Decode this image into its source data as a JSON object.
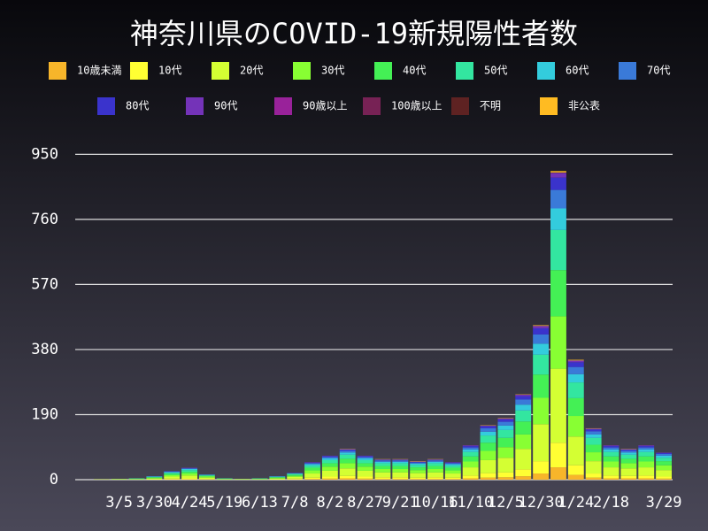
{
  "chart_data": {
    "type": "stacked-bar",
    "title": "神奈川県のCOVID-19新規陽性者数",
    "categories": [
      null,
      null,
      "3/5",
      null,
      "3/30",
      null,
      "4/24",
      null,
      "5/19",
      null,
      "6/13",
      null,
      "7/8",
      null,
      "8/2",
      null,
      "8/27",
      null,
      "9/21",
      null,
      "10/16",
      null,
      "11/10",
      null,
      "12/5",
      null,
      "12/30",
      null,
      "1/24",
      null,
      "2/18",
      null,
      null,
      "3/29"
    ],
    "series": [
      {
        "name": "10歳未満",
        "color": "#f7b52a",
        "values": [
          0,
          0,
          0,
          0,
          0,
          1,
          1,
          1,
          0,
          0,
          0,
          0,
          1,
          2,
          3,
          4,
          3,
          2,
          2,
          2,
          2,
          2,
          4,
          6,
          7,
          10,
          18,
          36,
          14,
          6,
          4,
          4,
          4,
          3
        ]
      },
      {
        "name": "10代",
        "color": "#ffff33",
        "values": [
          0,
          0,
          0,
          0,
          1,
          2,
          3,
          1,
          0,
          0,
          0,
          1,
          2,
          4,
          6,
          7,
          6,
          5,
          5,
          4,
          5,
          4,
          8,
          13,
          14,
          20,
          36,
          72,
          28,
          12,
          8,
          7,
          8,
          6
        ]
      },
      {
        "name": "20代",
        "color": "#d4ff33",
        "values": [
          0,
          1,
          1,
          1,
          2,
          6,
          8,
          4,
          1,
          1,
          1,
          2,
          5,
          12,
          17,
          22,
          17,
          14,
          14,
          13,
          14,
          12,
          24,
          38,
          43,
          60,
          108,
          216,
          84,
          36,
          24,
          22,
          24,
          19
        ]
      },
      {
        "name": "30代",
        "color": "#88ff33",
        "values": [
          0,
          0,
          1,
          1,
          2,
          4,
          6,
          3,
          1,
          1,
          1,
          2,
          3,
          9,
          12,
          15,
          12,
          10,
          10,
          9,
          10,
          9,
          17,
          27,
          31,
          42,
          77,
          153,
          60,
          26,
          17,
          15,
          17,
          14
        ]
      },
      {
        "name": "40代",
        "color": "#44f055",
        "values": [
          0,
          0,
          0,
          1,
          2,
          4,
          5,
          2,
          1,
          0,
          1,
          2,
          3,
          8,
          10,
          13,
          10,
          9,
          9,
          8,
          9,
          8,
          15,
          24,
          27,
          38,
          68,
          135,
          52,
          22,
          15,
          13,
          15,
          12
        ]
      },
      {
        "name": "50代",
        "color": "#33e6a0",
        "values": [
          0,
          0,
          0,
          1,
          1,
          3,
          5,
          2,
          1,
          0,
          1,
          1,
          3,
          6,
          9,
          12,
          9,
          8,
          8,
          7,
          8,
          6,
          13,
          21,
          23,
          32,
          58,
          117,
          46,
          20,
          13,
          12,
          13,
          10
        ]
      },
      {
        "name": "60代",
        "color": "#33ccdd",
        "values": [
          0,
          0,
          0,
          0,
          1,
          2,
          3,
          1,
          0,
          0,
          0,
          1,
          1,
          4,
          5,
          6,
          5,
          4,
          4,
          4,
          4,
          4,
          7,
          11,
          13,
          17,
          32,
          63,
          24,
          10,
          7,
          6,
          7,
          6
        ]
      },
      {
        "name": "70代",
        "color": "#3a7ad8",
        "values": [
          0,
          0,
          0,
          0,
          1,
          2,
          2,
          1,
          0,
          0,
          0,
          1,
          1,
          3,
          4,
          5,
          4,
          4,
          4,
          3,
          4,
          3,
          6,
          10,
          11,
          15,
          27,
          54,
          21,
          9,
          6,
          5,
          6,
          5
        ]
      },
      {
        "name": "80代",
        "color": "#3a33cc",
        "values": [
          0,
          0,
          0,
          0,
          0,
          1,
          1,
          0,
          0,
          0,
          0,
          0,
          1,
          2,
          3,
          4,
          3,
          2,
          2,
          2,
          2,
          2,
          4,
          6,
          7,
          10,
          18,
          36,
          14,
          6,
          4,
          4,
          4,
          3
        ]
      },
      {
        "name": "90代",
        "color": "#7433b8",
        "values": [
          0,
          0,
          0,
          0,
          0,
          0,
          1,
          0,
          0,
          0,
          0,
          0,
          0,
          1,
          1,
          1,
          1,
          1,
          1,
          1,
          1,
          1,
          2,
          2,
          3,
          4,
          7,
          14,
          5,
          2,
          2,
          1,
          2,
          1
        ]
      },
      {
        "name": "90歳以上",
        "color": "#99229a",
        "values": [
          0,
          0,
          0,
          0,
          0,
          0,
          0,
          0,
          0,
          0,
          0,
          0,
          0,
          0,
          0,
          0,
          0,
          0,
          0,
          0,
          0,
          0,
          0,
          0,
          0,
          0,
          0,
          0,
          0,
          0,
          0,
          0,
          0,
          0
        ]
      },
      {
        "name": "100歳以上",
        "color": "#772255",
        "values": [
          0,
          0,
          0,
          0,
          0,
          0,
          0,
          0,
          0,
          0,
          0,
          0,
          0,
          0,
          0,
          0,
          0,
          0,
          0,
          0,
          0,
          0,
          0,
          0,
          0,
          0,
          0,
          0,
          0,
          0,
          0,
          0,
          0,
          0
        ]
      },
      {
        "name": "不明",
        "color": "#5e2222",
        "values": [
          0,
          0,
          0,
          0,
          0,
          0,
          0,
          0,
          0,
          0,
          0,
          0,
          0,
          0,
          0,
          0,
          0,
          0,
          0,
          0,
          0,
          0,
          0,
          0,
          0,
          0,
          0,
          1,
          0,
          0,
          0,
          0,
          0,
          0
        ]
      },
      {
        "name": "非公表",
        "color": "#ffbb22",
        "values": [
          0,
          0,
          0,
          0,
          0,
          0,
          0,
          0,
          0,
          0,
          0,
          0,
          0,
          0,
          0,
          1,
          0,
          1,
          1,
          1,
          1,
          0,
          0,
          1,
          1,
          1,
          2,
          4,
          2,
          1,
          0,
          1,
          0,
          0
        ]
      }
    ],
    "ylim": [
      0,
      1000
    ],
    "yticks": [
      0,
      190,
      380,
      570,
      760,
      950
    ],
    "grid": true
  }
}
